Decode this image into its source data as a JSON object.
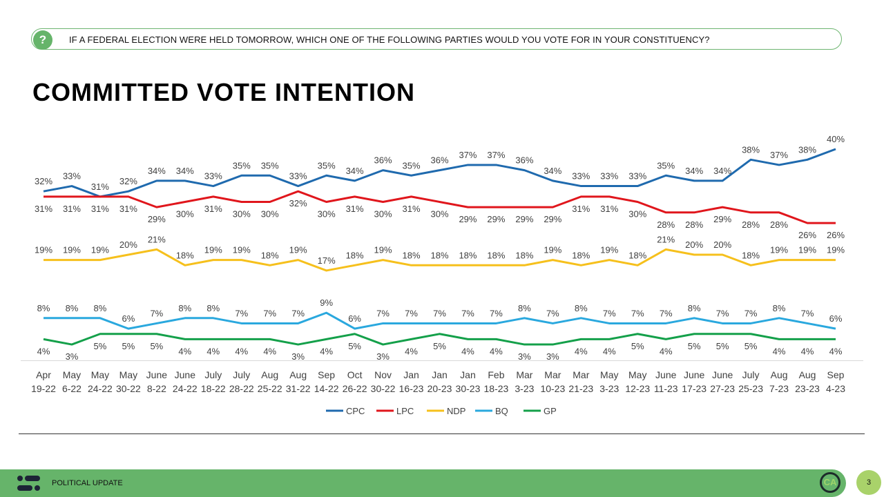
{
  "question": {
    "icon": "question-bubble-icon",
    "text": "IF A FEDERAL ELECTION WERE HELD TOMORROW, WHICH ONE OF THE FOLLOWING PARTIES WOULD YOU VOTE FOR IN YOUR CONSTITUENCY?"
  },
  "title": "COMMITTED VOTE INTENTION",
  "chart_data": {
    "type": "line",
    "title": "",
    "xlabel": "",
    "ylabel": "",
    "ylim": [
      0,
      40
    ],
    "grid": false,
    "legend_position": "bottom",
    "categories": [
      [
        "Apr",
        "19-22"
      ],
      [
        "May",
        "6-22"
      ],
      [
        "May",
        "24-22"
      ],
      [
        "May",
        "30-22"
      ],
      [
        "June",
        "8-22"
      ],
      [
        "June",
        "24-22"
      ],
      [
        "July",
        "18-22"
      ],
      [
        "July",
        "28-22"
      ],
      [
        "Aug",
        "25-22"
      ],
      [
        "Aug",
        "31-22"
      ],
      [
        "Sep",
        "14-22"
      ],
      [
        "Oct",
        "26-22"
      ],
      [
        "Nov",
        "30-22"
      ],
      [
        "Jan",
        "16-23"
      ],
      [
        "Jan",
        "20-23"
      ],
      [
        "Jan",
        "30-23"
      ],
      [
        "Feb",
        "18-23"
      ],
      [
        "Mar",
        "3-23"
      ],
      [
        "Mar",
        "10-23"
      ],
      [
        "Mar",
        "21-23"
      ],
      [
        "May",
        "3-23"
      ],
      [
        "May",
        "12-23"
      ],
      [
        "June",
        "11-23"
      ],
      [
        "June",
        "17-23"
      ],
      [
        "June",
        "27-23"
      ],
      [
        "July",
        "25-23"
      ],
      [
        "Aug",
        "7-23"
      ],
      [
        "Aug",
        "23-23"
      ],
      [
        "Sep",
        "4-23"
      ]
    ],
    "series": [
      {
        "name": "CPC",
        "color": "#1f6aae",
        "label_pos": "above",
        "values": [
          32,
          33,
          31,
          32,
          34,
          34,
          33,
          35,
          35,
          33,
          35,
          34,
          36,
          35,
          36,
          37,
          37,
          36,
          34,
          33,
          33,
          33,
          35,
          34,
          34,
          38,
          37,
          38,
          40
        ]
      },
      {
        "name": "LPC",
        "color": "#e0161c",
        "label_pos": "below",
        "values": [
          31,
          31,
          31,
          31,
          29,
          30,
          31,
          30,
          30,
          32,
          30,
          31,
          30,
          31,
          30,
          29,
          29,
          29,
          29,
          31,
          31,
          30,
          28,
          28,
          29,
          28,
          28,
          26,
          26
        ]
      },
      {
        "name": "NDP",
        "color": "#f6c01c",
        "label_pos": "above",
        "values": [
          19,
          19,
          19,
          20,
          21,
          18,
          19,
          19,
          18,
          19,
          17,
          18,
          19,
          18,
          18,
          18,
          18,
          18,
          19,
          18,
          19,
          18,
          21,
          20,
          20,
          18,
          19,
          19,
          19
        ]
      },
      {
        "name": "BQ",
        "color": "#2aa8de",
        "label_pos": "above",
        "values": [
          8,
          8,
          8,
          6,
          7,
          8,
          8,
          7,
          7,
          7,
          9,
          6,
          7,
          7,
          7,
          7,
          7,
          8,
          7,
          8,
          7,
          7,
          7,
          8,
          7,
          7,
          8,
          7,
          6
        ]
      },
      {
        "name": "GP",
        "color": "#14a04a",
        "label_pos": "below",
        "values": [
          4,
          3,
          5,
          5,
          5,
          4,
          4,
          4,
          4,
          3,
          4,
          5,
          3,
          4,
          5,
          4,
          4,
          3,
          3,
          4,
          4,
          5,
          4,
          5,
          5,
          5,
          4,
          4,
          4
        ]
      }
    ]
  },
  "footer": {
    "label": "POLITICAL UPDATE",
    "logo_text": "CA",
    "page": "3",
    "brand_color": "#66b46a"
  }
}
